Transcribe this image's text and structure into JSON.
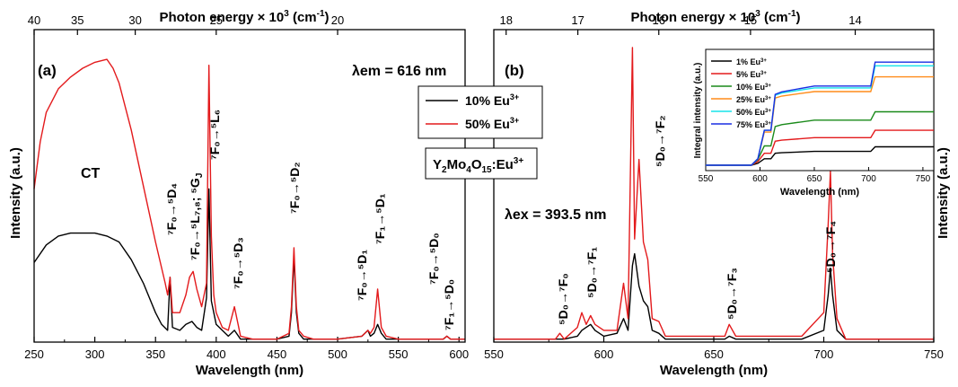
{
  "figure": {
    "top_axis_title": "Photon energy × 10",
    "top_axis_exp": "3",
    "top_axis_unit": " (cm",
    "top_axis_unit_exp": "-1",
    "top_axis_close": ")",
    "x_axis_title": "Wavelength (nm)",
    "y_axis_title": "Intensity (a.u.)",
    "legend_items": [
      {
        "label": "10% Eu",
        "sup": "3+",
        "color": "#000000"
      },
      {
        "label": "50% Eu",
        "sup": "3+",
        "color": "#e31a1c"
      }
    ],
    "formula_box": {
      "parts": [
        "Y",
        "2",
        "Mo",
        "4",
        "O",
        "15",
        ":Eu",
        "3+"
      ]
    }
  },
  "chart_data": [
    {
      "type": "line",
      "panel_label": "(a)",
      "annotation": "λem = 616 nm",
      "xlabel": "Wavelength (nm)",
      "ylabel": "Intensity (a.u.)",
      "xlim": [
        250,
        605
      ],
      "xticks": [
        250,
        300,
        350,
        400,
        450,
        500,
        550,
        600
      ],
      "top_ticks": [
        "40",
        "35",
        "30",
        "25",
        "20"
      ],
      "top_tick_wavelengths": [
        250,
        285.7,
        333.3,
        400,
        500
      ],
      "ylim": [
        0,
        1
      ],
      "text_annotations": [
        "CT",
        "7F0→5D4",
        "7F0→5L7,8; 5GJ",
        "7F0→5L6",
        "7F0→5D3",
        "7F0→5D2",
        "7F0→5D1",
        "7F1→5D1",
        "7F0→5D0",
        "7F1→5D0"
      ],
      "series": [
        {
          "name": "10% Eu3+",
          "color": "#000000",
          "x": [
            250,
            260,
            270,
            280,
            290,
            300,
            310,
            320,
            330,
            340,
            350,
            355,
            360,
            362,
            364,
            370,
            375,
            380,
            384,
            388,
            392,
            394,
            396,
            400,
            405,
            410,
            415,
            420,
            430,
            450,
            460,
            462,
            464,
            466,
            468,
            472,
            480,
            500,
            520,
            525,
            527,
            530,
            533,
            536,
            540,
            550,
            575,
            580,
            587,
            590,
            593,
            600,
            605
          ],
          "y": [
            0.27,
            0.33,
            0.36,
            0.37,
            0.37,
            0.37,
            0.36,
            0.34,
            0.28,
            0.2,
            0.1,
            0.06,
            0.04,
            0.22,
            0.05,
            0.04,
            0.06,
            0.07,
            0.05,
            0.04,
            0.15,
            0.52,
            0.14,
            0.06,
            0.04,
            0.02,
            0.04,
            0.01,
            0.01,
            0.01,
            0.02,
            0.1,
            0.29,
            0.1,
            0.03,
            0.01,
            0.01,
            0.01,
            0.02,
            0.04,
            0.02,
            0.03,
            0.06,
            0.03,
            0.01,
            0.01,
            0.01,
            0.01,
            0.01,
            0.02,
            0.01,
            0.01,
            0.01
          ]
        },
        {
          "name": "50% Eu3+",
          "color": "#e31a1c",
          "x": [
            250,
            255,
            260,
            270,
            280,
            290,
            300,
            310,
            315,
            320,
            330,
            340,
            350,
            358,
            360,
            362,
            364,
            370,
            375,
            378,
            381,
            384,
            388,
            392,
            394,
            396,
            398,
            400,
            405,
            410,
            415,
            418,
            420,
            430,
            450,
            460,
            462,
            464,
            466,
            468,
            472,
            480,
            500,
            520,
            525,
            527,
            530,
            533,
            536,
            540,
            550,
            575,
            580,
            587,
            590,
            593,
            600,
            605
          ],
          "y": [
            0.52,
            0.68,
            0.78,
            0.86,
            0.9,
            0.93,
            0.95,
            0.96,
            0.93,
            0.88,
            0.72,
            0.53,
            0.34,
            0.2,
            0.16,
            0.22,
            0.1,
            0.1,
            0.16,
            0.22,
            0.24,
            0.18,
            0.12,
            0.2,
            0.94,
            0.36,
            0.16,
            0.1,
            0.05,
            0.04,
            0.12,
            0.06,
            0.02,
            0.01,
            0.01,
            0.03,
            0.12,
            0.32,
            0.12,
            0.04,
            0.02,
            0.01,
            0.01,
            0.02,
            0.04,
            0.03,
            0.05,
            0.18,
            0.05,
            0.02,
            0.01,
            0.01,
            0.01,
            0.01,
            0.02,
            0.01,
            0.01,
            0.01
          ]
        }
      ]
    },
    {
      "type": "line",
      "panel_label": "(b)",
      "annotation": "λex = 393.5 nm",
      "xlabel": "Wavelength (nm)",
      "ylabel": "Intensity (a.u.)",
      "xlim": [
        550,
        750
      ],
      "xticks": [
        550,
        600,
        650,
        700,
        750
      ],
      "top_ticks": [
        "18",
        "17",
        "16",
        "15",
        "14"
      ],
      "top_tick_wavelengths": [
        555.6,
        588.2,
        625,
        666.7,
        714.3
      ],
      "ylim": [
        0,
        1
      ],
      "text_annotations": [
        "5D0→7F0",
        "5D0→7F1",
        "5D0→7F2",
        "5D0→7F3",
        "5D0→7F4"
      ],
      "series": [
        {
          "name": "10% Eu3+",
          "color": "#000000",
          "x": [
            550,
            578,
            580,
            582,
            588,
            590,
            592,
            594,
            596,
            600,
            606,
            609,
            611,
            613,
            614,
            616,
            618,
            620,
            622,
            625,
            628,
            635,
            650,
            655,
            657,
            660,
            690,
            700,
            702,
            703,
            704,
            706,
            710,
            750
          ],
          "y": [
            0.01,
            0.01,
            0.01,
            0.01,
            0.02,
            0.04,
            0.05,
            0.06,
            0.04,
            0.02,
            0.03,
            0.08,
            0.04,
            0.26,
            0.3,
            0.19,
            0.14,
            0.12,
            0.04,
            0.03,
            0.01,
            0.01,
            0.01,
            0.01,
            0.02,
            0.01,
            0.01,
            0.04,
            0.16,
            0.25,
            0.16,
            0.04,
            0.01,
            0.01
          ]
        },
        {
          "name": "50% Eu3+",
          "color": "#e31a1c",
          "x": [
            550,
            578,
            580,
            582,
            588,
            590,
            592,
            594,
            596,
            600,
            606,
            609,
            611,
            613,
            614,
            616,
            618,
            620,
            622,
            625,
            628,
            635,
            650,
            655,
            657,
            660,
            690,
            700,
            702,
            703,
            704,
            706,
            710,
            750
          ],
          "y": [
            0.01,
            0.01,
            0.03,
            0.01,
            0.05,
            0.1,
            0.06,
            0.09,
            0.06,
            0.04,
            0.04,
            0.2,
            0.08,
            1.0,
            0.35,
            0.62,
            0.34,
            0.28,
            0.08,
            0.07,
            0.02,
            0.02,
            0.02,
            0.02,
            0.06,
            0.02,
            0.02,
            0.1,
            0.4,
            0.58,
            0.3,
            0.08,
            0.01,
            0.01
          ]
        }
      ]
    },
    {
      "type": "line",
      "panel_label": "",
      "xlabel": "Wavelength (nm)",
      "ylabel": "Integral intensity (a.u.)",
      "xlim": [
        550,
        760
      ],
      "xticks": [
        550,
        600,
        650,
        700,
        750
      ],
      "ylim": [
        0,
        1
      ],
      "series": [
        {
          "name": "1% Eu3+",
          "color": "#000000",
          "plateaus": [
            0.0,
            0.02,
            0.07,
            0.13,
            0.15,
            0.2
          ]
        },
        {
          "name": "5% Eu3+",
          "color": "#e31a1c",
          "plateaus": [
            0.0,
            0.04,
            0.13,
            0.26,
            0.3,
            0.38
          ]
        },
        {
          "name": "10% Eu3+",
          "color": "#1a8a1a",
          "plateaus": [
            0.0,
            0.06,
            0.21,
            0.42,
            0.49,
            0.58
          ]
        },
        {
          "name": "25% Eu3+",
          "color": "#ff8c1a",
          "plateaus": [
            0.0,
            0.07,
            0.36,
            0.73,
            0.8,
            0.96
          ]
        },
        {
          "name": "50% Eu3+",
          "color": "#17e3ea",
          "plateaus": [
            0.0,
            0.07,
            0.38,
            0.76,
            0.84,
            1.08
          ]
        },
        {
          "name": "75% Eu3+",
          "color": "#1a2fe3",
          "plateaus": [
            0.0,
            0.07,
            0.38,
            0.77,
            0.86,
            1.12
          ]
        }
      ]
    }
  ]
}
